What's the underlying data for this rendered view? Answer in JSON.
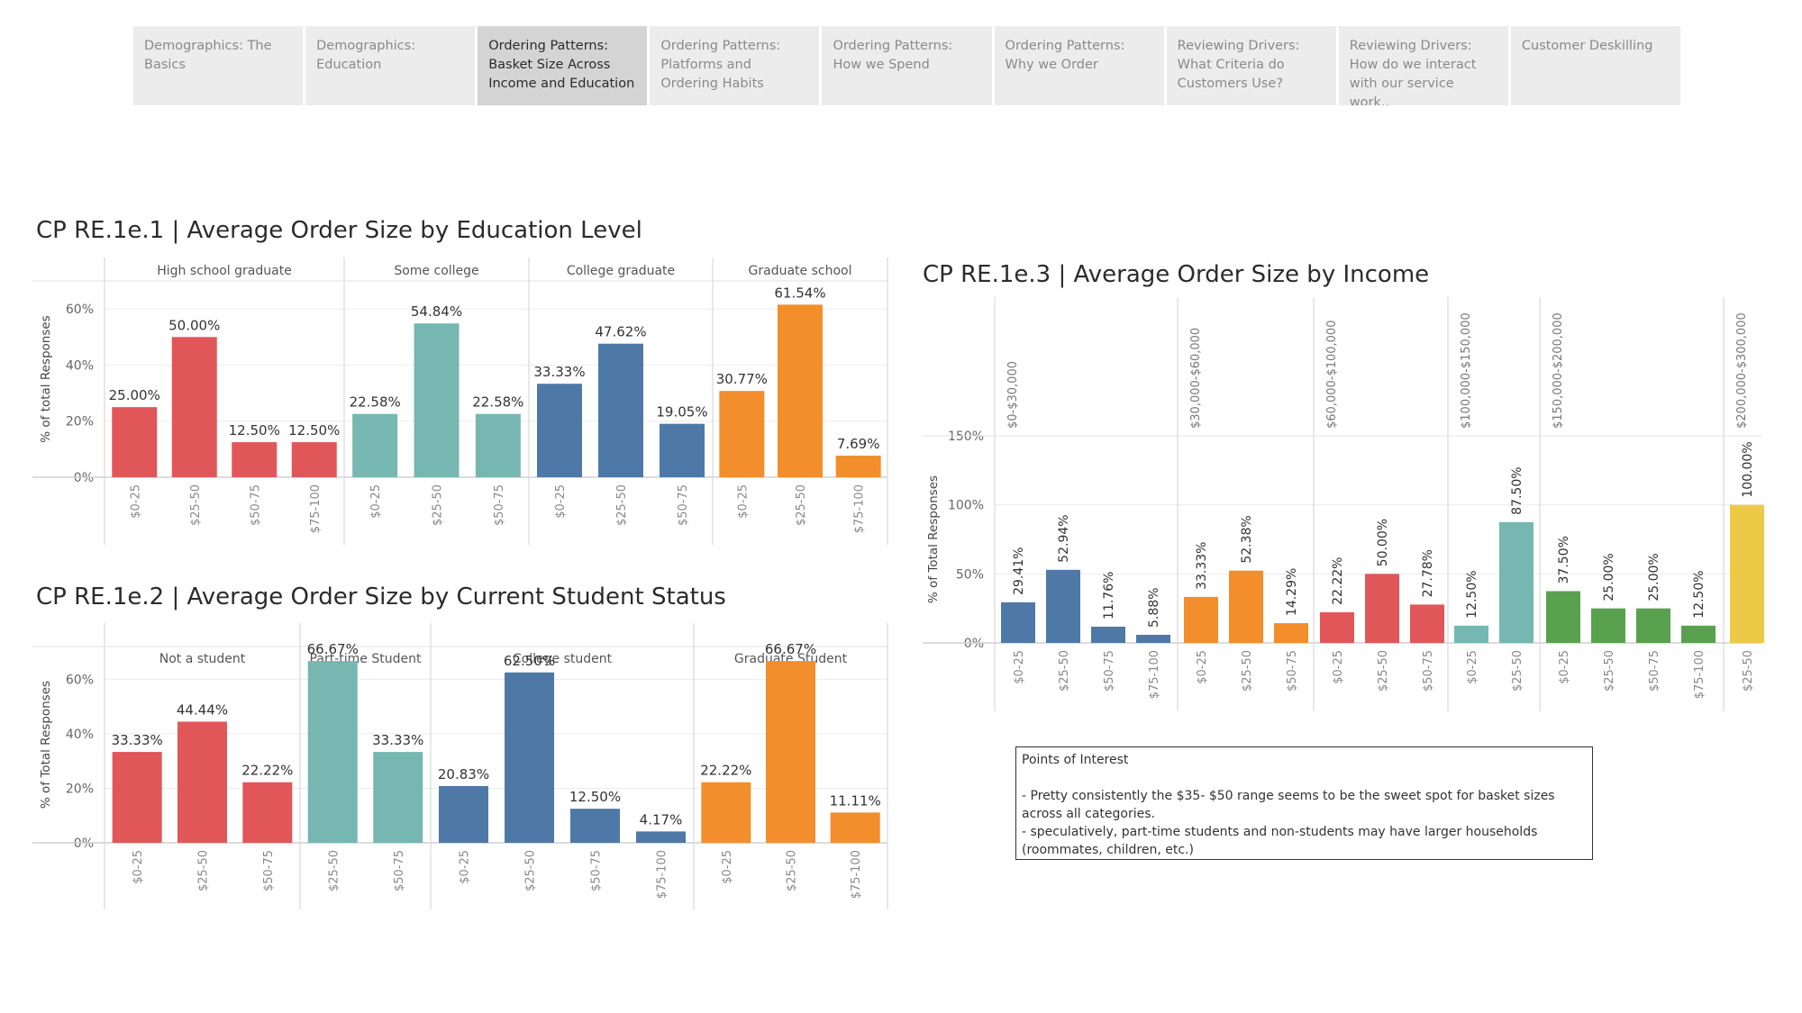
{
  "tabs": [
    {
      "label": "Demographics: The Basics",
      "active": false
    },
    {
      "label": "Demographics: Education",
      "active": false
    },
    {
      "label": "Ordering Patterns: Basket Size Across Income and Education",
      "active": true
    },
    {
      "label": "Ordering Patterns: Platforms and Ordering Habits",
      "active": false
    },
    {
      "label": "Ordering Patterns: How we Spend",
      "active": false
    },
    {
      "label": "Ordering Patterns: Why we Order",
      "active": false
    },
    {
      "label": "Reviewing Drivers: What Criteria do Customers Use?",
      "active": false
    },
    {
      "label": "Reviewing Drivers: How do we interact with our service work..",
      "active": false
    },
    {
      "label": "Customer Deskilling",
      "active": false
    }
  ],
  "colors": {
    "red": "#e15759",
    "teal": "#76b7b2",
    "blue": "#4e79a7",
    "orange": "#f28e2b",
    "green": "#59a14f",
    "yellow": "#edc948"
  },
  "chart_data": [
    {
      "type": "bar",
      "title": "CP RE.1e.1 | Average Order Size by Education Level",
      "ylabel": "% of total Responses",
      "ylim": [
        0,
        70
      ],
      "yticks": [
        "0%",
        "20%",
        "40%",
        "60%"
      ],
      "groups": [
        {
          "name": "High school graduate",
          "color": "red",
          "categories": [
            "$0-25",
            "$25-50",
            "$50-75",
            "$75-100"
          ],
          "values": [
            25.0,
            50.0,
            12.5,
            12.5
          ],
          "labels": [
            "25.00%",
            "50.00%",
            "12.50%",
            "12.50%"
          ]
        },
        {
          "name": "Some college",
          "color": "teal",
          "categories": [
            "$0-25",
            "$25-50",
            "$50-75"
          ],
          "values": [
            22.58,
            54.84,
            22.58
          ],
          "labels": [
            "22.58%",
            "54.84%",
            "22.58%"
          ]
        },
        {
          "name": "College graduate",
          "color": "blue",
          "categories": [
            "$0-25",
            "$25-50",
            "$50-75"
          ],
          "values": [
            33.33,
            47.62,
            19.05
          ],
          "labels": [
            "33.33%",
            "47.62%",
            "19.05%"
          ]
        },
        {
          "name": "Graduate school",
          "color": "orange",
          "categories": [
            "$0-25",
            "$25-50",
            "$75-100"
          ],
          "values": [
            30.77,
            61.54,
            7.69
          ],
          "labels": [
            "30.77%",
            "61.54%",
            "7.69%"
          ]
        }
      ]
    },
    {
      "type": "bar",
      "title": "CP RE.1e.2 | Average Order Size by Current Student Status",
      "ylabel": "% of Total Responses",
      "ylim": [
        0,
        72
      ],
      "yticks": [
        "0%",
        "20%",
        "40%",
        "60%"
      ],
      "groups": [
        {
          "name": "Not a student",
          "color": "red",
          "categories": [
            "$0-25",
            "$25-50",
            "$50-75"
          ],
          "values": [
            33.33,
            44.44,
            22.22
          ],
          "labels": [
            "33.33%",
            "44.44%",
            "22.22%"
          ]
        },
        {
          "name": "Part-time Student",
          "color": "teal",
          "categories": [
            "$25-50",
            "$50-75"
          ],
          "values": [
            66.67,
            33.33
          ],
          "labels": [
            "66.67%",
            "33.33%"
          ]
        },
        {
          "name": "College student",
          "color": "blue",
          "categories": [
            "$0-25",
            "$25-50",
            "$50-75",
            "$75-100"
          ],
          "values": [
            20.83,
            62.5,
            12.5,
            4.17
          ],
          "labels": [
            "20.83%",
            "62.50%",
            "12.50%",
            "4.17%"
          ]
        },
        {
          "name": "Graduate Student",
          "color": "orange",
          "categories": [
            "$0-25",
            "$25-50",
            "$75-100"
          ],
          "values": [
            22.22,
            66.67,
            11.11
          ],
          "labels": [
            "22.22%",
            "66.67%",
            "11.11%"
          ]
        }
      ]
    },
    {
      "type": "bar",
      "title": "CP RE.1e.3 | Average Order Size by Income",
      "ylabel": "% of Total Responses",
      "ylim": [
        0,
        150
      ],
      "yticks": [
        "0%",
        "50%",
        "100%",
        "150%"
      ],
      "groups": [
        {
          "name": "$0-$30,000",
          "color": "blue",
          "categories": [
            "$0-25",
            "$25-50",
            "$50-75",
            "$75-100"
          ],
          "values": [
            29.41,
            52.94,
            11.76,
            5.88
          ],
          "labels": [
            "29.41%",
            "52.94%",
            "11.76%",
            "5.88%"
          ]
        },
        {
          "name": "$30,000-$60,000",
          "color": "orange",
          "categories": [
            "$0-25",
            "$25-50",
            "$50-75"
          ],
          "values": [
            33.33,
            52.38,
            14.29
          ],
          "labels": [
            "33.33%",
            "52.38%",
            "14.29%"
          ]
        },
        {
          "name": "$60,000-$100,000",
          "color": "red",
          "categories": [
            "$0-25",
            "$25-50",
            "$50-75"
          ],
          "values": [
            22.22,
            50.0,
            27.78
          ],
          "labels": [
            "22.22%",
            "50.00%",
            "27.78%"
          ]
        },
        {
          "name": "$100,000-$150,000",
          "color": "teal",
          "categories": [
            "$0-25",
            "$25-50"
          ],
          "values": [
            12.5,
            87.5
          ],
          "labels": [
            "12.50%",
            "87.50%"
          ]
        },
        {
          "name": "$150,000-$200,000",
          "color": "green",
          "categories": [
            "$0-25",
            "$25-50",
            "$50-75",
            "$75-100"
          ],
          "values": [
            37.5,
            25.0,
            25.0,
            12.5
          ],
          "labels": [
            "37.50%",
            "25.00%",
            "25.00%",
            "12.50%"
          ]
        },
        {
          "name": "$200,000-$300,000",
          "color": "yellow",
          "categories": [
            "$25-50"
          ],
          "values": [
            100.0
          ],
          "labels": [
            "100.00%"
          ]
        }
      ]
    }
  ],
  "points_of_interest": {
    "heading": "Points of Interest",
    "lines": [
      "- Pretty consistently the $35- $50 range seems to be the sweet spot for basket sizes across all categories.",
      "- speculatively, part-time students and non-students may have larger households (roommates, children, etc.)"
    ]
  }
}
